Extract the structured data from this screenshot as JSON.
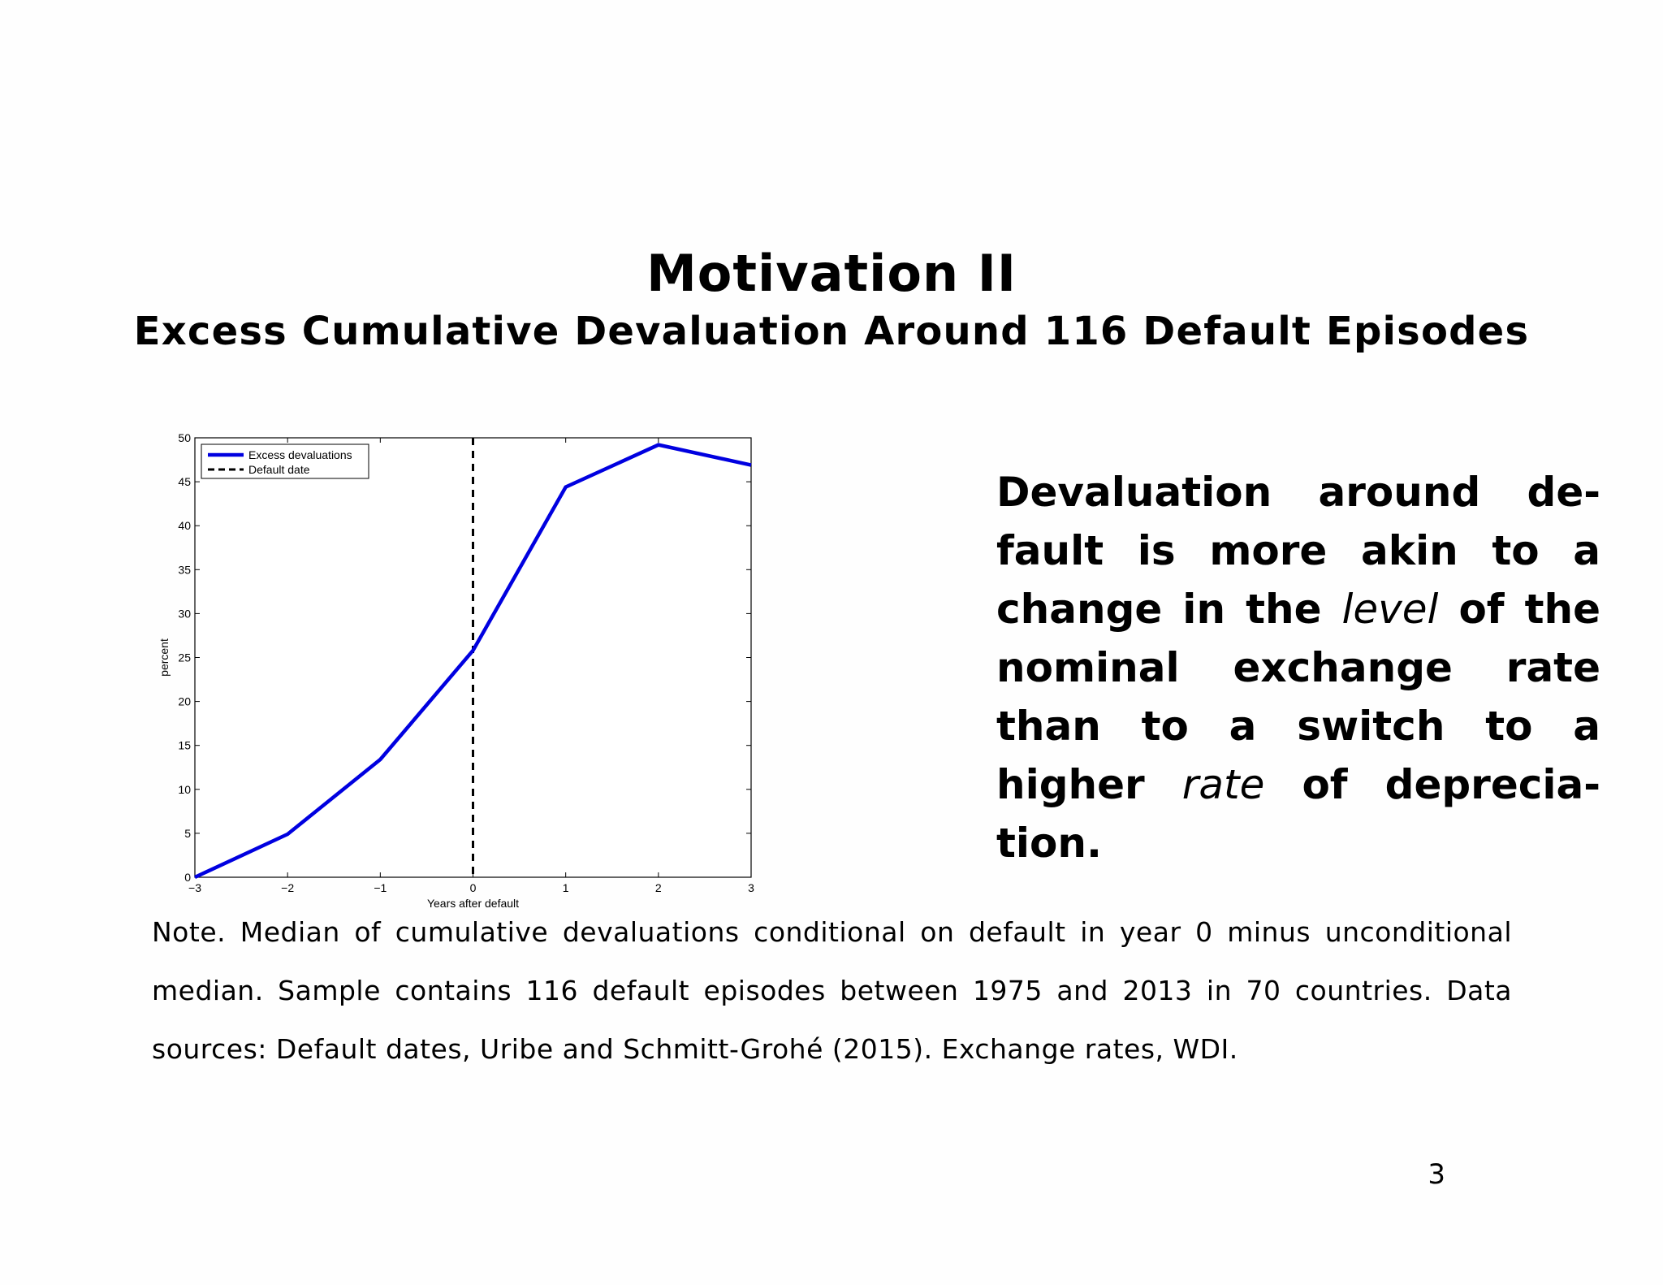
{
  "slide": {
    "title": "Motivation II",
    "subtitle": "Excess Cumulative Devaluation Around 116 Default Episodes",
    "body_parts": {
      "p1": "Devaluation around de-fault is more akin to a change in the ",
      "em1": "level",
      "p2": " of the nominal exchange rate than to a switch to a higher ",
      "em2": "rate",
      "p3": " of deprecia-tion."
    },
    "note": "Note. Median of cumulative devaluations conditional on default in year 0 minus unconditional median. Sample contains 116 default episodes between 1975 and 2013 in 70 countries. Data sources: Default dates, Uribe and Schmitt-Grohé (2015). Exchange rates, WDI.",
    "page_number": "3"
  },
  "chart_data": {
    "type": "line",
    "xlabel": "Years after default",
    "ylabel": "percent",
    "xlim": [
      -3,
      3
    ],
    "ylim": [
      0,
      50
    ],
    "xticks": [
      -3,
      -2,
      -1,
      0,
      1,
      2,
      3
    ],
    "xtick_labels": [
      "−3",
      "−2",
      "−1",
      "0",
      "1",
      "2",
      "3"
    ],
    "yticks": [
      0,
      5,
      10,
      15,
      20,
      25,
      30,
      35,
      40,
      45,
      50
    ],
    "grid": false,
    "legend": "top-left",
    "series": [
      {
        "name": "Excess devaluations",
        "color": "#0000e0",
        "style": "solid",
        "x": [
          -3,
          -2,
          -1,
          0,
          1,
          2,
          3
        ],
        "y": [
          0,
          4.9,
          13.4,
          25.8,
          44.4,
          49.2,
          46.9
        ]
      }
    ],
    "vlines": [
      {
        "name": "Default date",
        "x": 0,
        "color": "#000000",
        "style": "dashed"
      }
    ]
  }
}
